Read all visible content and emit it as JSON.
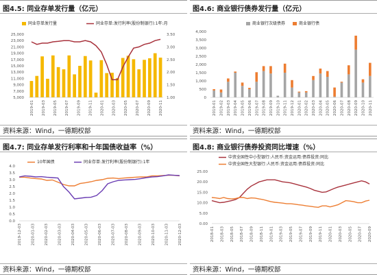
{
  "source_text": "资料来源：Wind，一德期权部",
  "panels": [
    {
      "title_num": "图4.5:",
      "title_text": "同业存单发行量（亿元）"
    },
    {
      "title_num": "图4.6:",
      "title_text": "商业银行债券发行量（亿元）"
    },
    {
      "title_num": "图4.7:",
      "title_text": "同业存单发行利率和十年国债收益率（%）"
    },
    {
      "title_num": "图4.8:",
      "title_text": "商业银行债券投资同比增速（%）"
    }
  ],
  "colors": {
    "gold": "#F5B800",
    "darkred": "#A8323C",
    "gray": "#A5A5A5",
    "orange": "#ED7D31",
    "purple": "#6A3DB3"
  },
  "chart_data": [
    {
      "type": "bar",
      "legend": [
        "同业存单发行量",
        "同业存单:发行利率(股份制银行):1年:月"
      ],
      "x_ticks": [
        "2019-01",
        "2019-03",
        "2019-05",
        "2019-07",
        "2019-09",
        "2019-11",
        "2020-01",
        "2020-03",
        "2020-05",
        "2020-07",
        "2020-09",
        "2020-11"
      ],
      "left_ticks": [
        "25,000",
        "23,000",
        "21,000",
        "19,000",
        "17,000",
        "15,000",
        "13,000",
        "11,000",
        "9,000",
        "7,000",
        "5,000"
      ],
      "right_ticks": [
        "3.50",
        "3.00",
        "2.50",
        "2.00",
        "1.50",
        "1.00"
      ],
      "bars": [
        10200,
        11800,
        18000,
        10900,
        18300,
        14600,
        13900,
        18300,
        12300,
        15000,
        18100,
        16700,
        6500,
        16800,
        12700,
        12800,
        11100,
        17500,
        18200,
        17100,
        13900,
        16900,
        17400,
        19000,
        17600
      ],
      "rate": [
        3.2,
        3.1,
        3.15,
        3.15,
        3.2,
        3.22,
        3.25,
        3.25,
        3.2,
        3.2,
        3.25,
        3.2,
        3.05,
        2.8,
        2.3,
        1.7,
        1.7,
        2.2,
        2.6,
        2.95,
        3.0,
        3.1,
        3.15,
        3.25,
        3.3
      ],
      "ylim_left": [
        5000,
        25000
      ],
      "ylim_right": [
        1.0,
        3.5
      ]
    },
    {
      "type": "bar",
      "legend": [
        "商业银行次级债券",
        "商业银行债"
      ],
      "x_ticks": [
        "2019-01",
        "2019-02",
        "2019-03",
        "2019-04",
        "2019-05",
        "2019-06",
        "2019-07",
        "2019-08",
        "2019-09",
        "2019-10",
        "2019-11",
        "2019-12",
        "2020-01",
        "2020-02",
        "2020-03",
        "2020-04",
        "2020-05",
        "2020-06",
        "2020-07",
        "2020-08",
        "2020-09",
        "2020-10",
        "2020-11"
      ],
      "y_ticks": [
        "4,000",
        "3,500",
        "3,000",
        "2,500",
        "2,000",
        "1,500",
        "1,000",
        "500",
        "0"
      ],
      "stack_bottom": [
        420,
        300,
        950,
        1500,
        700,
        500,
        950,
        1600,
        1450,
        100,
        1500,
        600,
        300,
        300,
        1050,
        1450,
        1250,
        50,
        900,
        1400,
        2900,
        900,
        1300
      ],
      "stack_top": [
        80,
        180,
        200,
        70,
        200,
        80,
        580,
        300,
        450,
        0,
        550,
        450,
        50,
        80,
        250,
        300,
        350,
        550,
        50,
        550,
        850,
        200,
        800
      ],
      "ylim": [
        0,
        4000
      ]
    },
    {
      "type": "line",
      "legend": [
        "10年国债",
        "同业存单:发行利率(股份制银行):1年"
      ],
      "x_ticks": [
        "2019-12-03",
        "2020-01-03",
        "2020-02-03",
        "2020-03-03",
        "2020-04-03",
        "2020-05-03",
        "2020-06-03",
        "2020-07-03",
        "2020-08-03",
        "2020-09-03",
        "2020-10-03",
        "2020-11-03",
        "2020-12-03"
      ],
      "y_ticks": [
        "4.0",
        "3.5",
        "3.0",
        "2.5",
        "2.0",
        "1.5",
        "1.0",
        "0.5",
        "0.0"
      ],
      "bond10y": [
        3.18,
        3.18,
        3.12,
        3.08,
        3.05,
        2.95,
        2.98,
        2.82,
        2.65,
        2.55,
        2.55,
        2.72,
        2.78,
        2.85,
        2.95,
        3.0,
        3.1,
        3.12,
        3.08,
        3.12,
        3.15,
        3.18,
        3.2,
        3.2,
        3.28,
        3.28,
        3.3,
        3.32,
        3.32,
        3.28
      ],
      "ncd_rate": [
        3.2,
        3.28,
        3.25,
        3.2,
        3.22,
        3.18,
        3.15,
        3.12,
        2.5,
        2.1,
        1.6,
        1.65,
        1.7,
        1.72,
        1.85,
        2.2,
        2.7,
        2.85,
        2.95,
        2.98,
        3.0,
        3.02,
        3.08,
        3.15,
        3.2,
        3.22,
        3.28,
        3.35,
        3.32,
        3.3
      ],
      "ylim": [
        0,
        4
      ]
    },
    {
      "type": "line",
      "legend": [
        "中资全国性中小型银行:人民币:资金运用:债券投资:同比",
        "中资全国性大型银行:人民币:资金运用:债券投资:同比"
      ],
      "x_ticks": [
        "2018-01",
        "2018-03",
        "2018-05",
        "2018-07",
        "2018-09",
        "2018-11",
        "2019-01",
        "2019-03",
        "2019-05",
        "2019-07",
        "2019-09",
        "2019-11",
        "2020-01",
        "2020-03",
        "2020-05",
        "2020-07",
        "2020-09"
      ],
      "y_ticks": [
        "25.00",
        "20.00",
        "15.00",
        "10.00",
        "5.00",
        "0.00"
      ],
      "small_banks": [
        11.0,
        10.5,
        10.0,
        10.2,
        10.6,
        11.0,
        11.5,
        12.5,
        14.5,
        16.5,
        18.0,
        19.0,
        20.0,
        20.5,
        21.0,
        21.0,
        21.0,
        20.5,
        20.0,
        19.8,
        19.5,
        19.0,
        18.5,
        18.0,
        17.5,
        16.8,
        16.0,
        15.5,
        15.0,
        15.2,
        16.0,
        16.8,
        17.5,
        18.0,
        18.5,
        19.0,
        19.5,
        20.0,
        20.5,
        20.0,
        19.0
      ],
      "large_banks": [
        12.5,
        12.3,
        12.0,
        12.5,
        12.0,
        11.8,
        12.0,
        12.5,
        12.5,
        12.0,
        12.3,
        12.2,
        11.8,
        11.5,
        11.0,
        10.5,
        10.2,
        10.0,
        9.8,
        9.5,
        9.5,
        9.3,
        9.0,
        8.8,
        8.5,
        8.3,
        8.0,
        7.8,
        8.5,
        8.5,
        8.0,
        8.5,
        9.0,
        10.0,
        11.0,
        10.8,
        10.5,
        10.0,
        10.0,
        10.8,
        11.2
      ],
      "ylim": [
        0,
        25
      ]
    }
  ]
}
